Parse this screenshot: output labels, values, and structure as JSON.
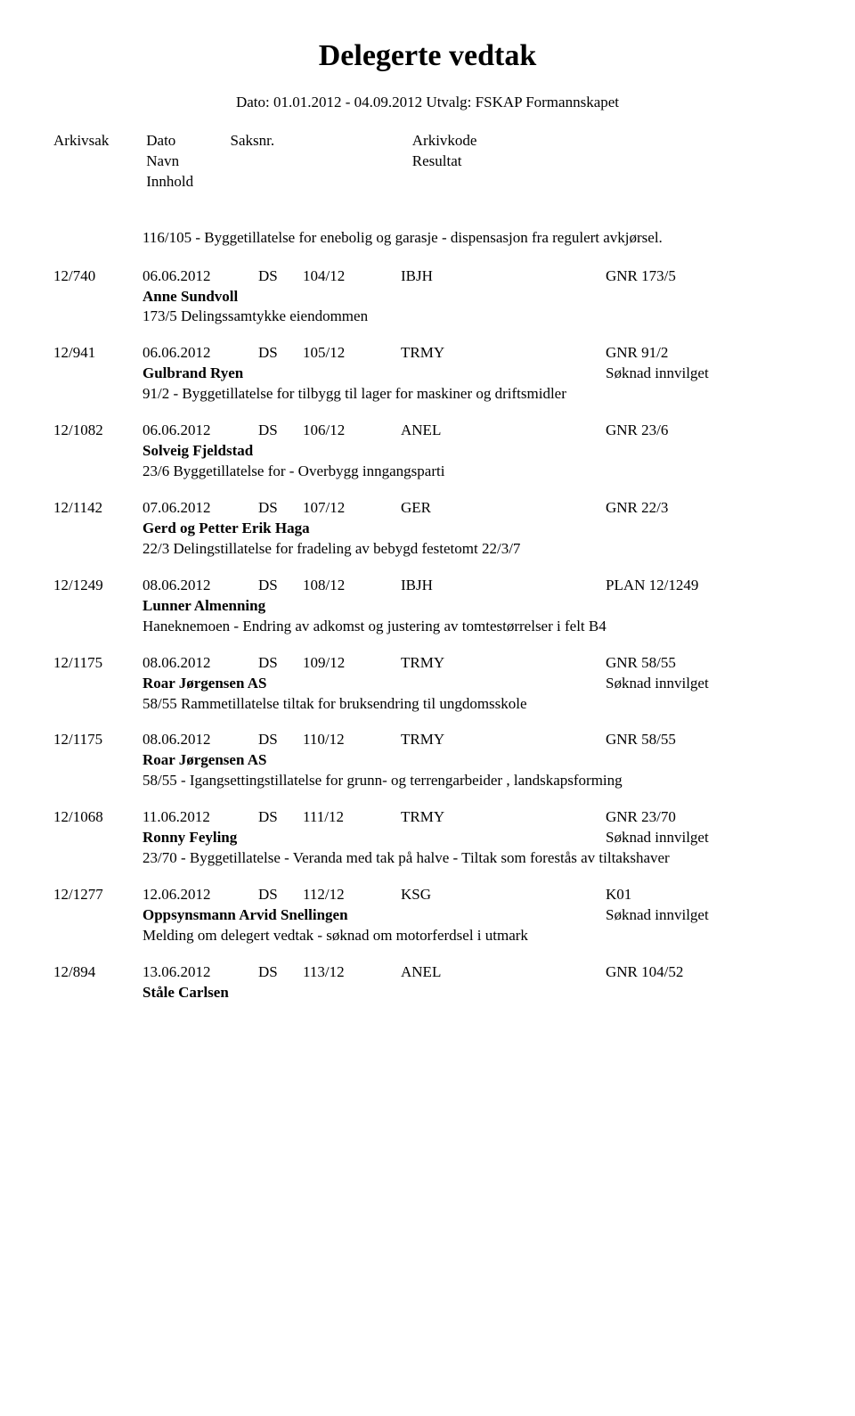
{
  "title": "Delegerte vedtak",
  "subtitle": "Dato: 01.01.2012 - 04.09.2012  Utvalg: FSKAP Formannskapet",
  "columns": {
    "arkivsak": "Arkivsak",
    "dato": "Dato",
    "saksnr": "Saksnr.",
    "arkivkode": "Arkivkode",
    "navn": "Navn",
    "resultat": "Resultat",
    "innhold": "Innhold"
  },
  "preamble": "116/105 - Byggetillatelse for enebolig og garasje - dispensasjon fra regulert avkjørsel.",
  "entries": [
    {
      "ref": "12/740",
      "date": "06.06.2012",
      "ds": "DS",
      "num": "104/12",
      "code": "IBJH",
      "gnr": "GNR 173/5",
      "applicant": "Anne Sundvoll",
      "result": "",
      "desc": "173/5 Delingssamtykke eiendommen"
    },
    {
      "ref": "12/941",
      "date": "06.06.2012",
      "ds": "DS",
      "num": "105/12",
      "code": "TRMY",
      "gnr": "GNR 91/2",
      "applicant": "Gulbrand Ryen",
      "result": "Søknad innvilget",
      "desc": "91/2 - Byggetillatelse for tilbygg til lager for maskiner og driftsmidler"
    },
    {
      "ref": "12/1082",
      "date": "06.06.2012",
      "ds": "DS",
      "num": "106/12",
      "code": "ANEL",
      "gnr": "GNR 23/6",
      "applicant": "Solveig Fjeldstad",
      "result": "",
      "desc": "23/6 Byggetillatelse for  - Overbygg inngangsparti"
    },
    {
      "ref": "12/1142",
      "date": "07.06.2012",
      "ds": "DS",
      "num": "107/12",
      "code": "GER",
      "gnr": "GNR 22/3",
      "applicant": "Gerd og Petter Erik Haga",
      "result": "",
      "desc": "22/3 Delingstillatelse for fradeling av bebygd festetomt 22/3/7"
    },
    {
      "ref": "12/1249",
      "date": "08.06.2012",
      "ds": "DS",
      "num": "108/12",
      "code": "IBJH",
      "gnr": "PLAN 12/1249",
      "applicant": "Lunner Almenning",
      "result": "",
      "desc": "Haneknemoen -  Endring av adkomst og justering av tomtestørrelser i felt B4"
    },
    {
      "ref": "12/1175",
      "date": "08.06.2012",
      "ds": "DS",
      "num": "109/12",
      "code": "TRMY",
      "gnr": "GNR 58/55",
      "applicant": "Roar Jørgensen AS",
      "result": "Søknad innvilget",
      "desc": "58/55 Rammetillatelse tiltak for bruksendring til ungdomsskole"
    },
    {
      "ref": "12/1175",
      "date": "08.06.2012",
      "ds": "DS",
      "num": "110/12",
      "code": "TRMY",
      "gnr": "GNR 58/55",
      "applicant": "Roar Jørgensen AS",
      "result": "",
      "desc": "58/55 - Igangsettingstillatelse for grunn- og terrengarbeider , landskapsforming"
    },
    {
      "ref": "12/1068",
      "date": "11.06.2012",
      "ds": "DS",
      "num": "111/12",
      "code": "TRMY",
      "gnr": "GNR 23/70",
      "applicant": "Ronny Feyling",
      "result": "Søknad innvilget",
      "desc": "23/70 - Byggetillatelse - Veranda med tak på halve - Tiltak som forestås av tiltakshaver"
    },
    {
      "ref": "12/1277",
      "date": "12.06.2012",
      "ds": "DS",
      "num": "112/12",
      "code": "KSG",
      "gnr": "K01",
      "applicant": "Oppsynsmann Arvid Snellingen",
      "result": "Søknad innvilget",
      "desc": "Melding om delegert vedtak - søknad om motorferdsel i utmark"
    },
    {
      "ref": "12/894",
      "date": "13.06.2012",
      "ds": "DS",
      "num": "113/12",
      "code": "ANEL",
      "gnr": "GNR 104/52",
      "applicant": "Ståle Carlsen",
      "result": "",
      "desc": ""
    }
  ]
}
